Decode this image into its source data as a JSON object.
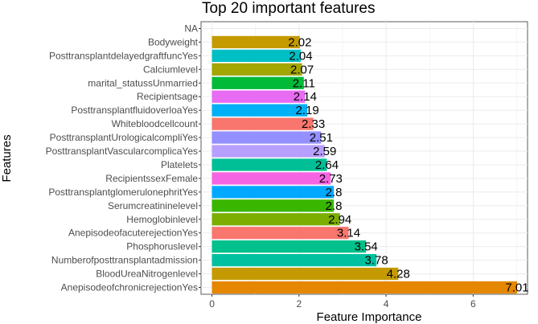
{
  "chart_data": {
    "type": "bar",
    "orientation": "horizontal",
    "title": "Top 20 important features",
    "xlabel": "Feature Importance",
    "ylabel": "Features",
    "xlim": [
      -0.25,
      7.25
    ],
    "x_ticks": [
      0,
      2,
      4,
      6
    ],
    "grid": true,
    "legend": "none",
    "categories": [
      "NA",
      "Bodyweight",
      "PosttransplantdelayedgraftfuncYes",
      "Calciumlevel",
      "marital_statussUnmarried",
      "Recipientsage",
      "PosttransplantfluidoverloaYes",
      "Whitebloodcellcount",
      "PosttransplantUrologicalcompliYes",
      "PosttransplantVascularcomplicaYes",
      "Platelets",
      "RecipientssexFemale",
      "PosttransplantglomerulonephritYes",
      "Serumcreatininelevel",
      "Hemoglobinlevel",
      "AnepisodeofacuterejectionYes",
      "Phosphoruslevel",
      "Numberofposttransplantadmission",
      "BloodUreaNitrogenlevel",
      "AnepisodeofchronicrejectionYes"
    ],
    "values": [
      null,
      2.02,
      2.04,
      2.07,
      2.11,
      2.14,
      2.19,
      2.33,
      2.51,
      2.59,
      2.64,
      2.73,
      2.8,
      2.8,
      2.94,
      3.14,
      3.54,
      3.78,
      4.28,
      7.01
    ],
    "labels": [
      "",
      "2.02",
      "2.04",
      "2.07",
      "2.11",
      "2.14",
      "2.19",
      "2.33",
      "2.51",
      "2.59",
      "2.64",
      "2.73",
      "2.8",
      "2.8",
      "2.94",
      "3.14",
      "3.54",
      "3.78",
      "4.28",
      "7.01"
    ],
    "colors": [
      "",
      "#C49A00",
      "#00BFC4",
      "#A3A500",
      "#00BA38",
      "#E76BF3",
      "#00B0F6",
      "#F8766D",
      "#9590FF",
      "#B79FFF",
      "#00BF96",
      "#F564E3",
      "#00A9FF",
      "#39B600",
      "#7CAE00",
      "#F8766D",
      "#00C08B",
      "#00C19F",
      "#C49A00",
      "#E58700"
    ]
  }
}
